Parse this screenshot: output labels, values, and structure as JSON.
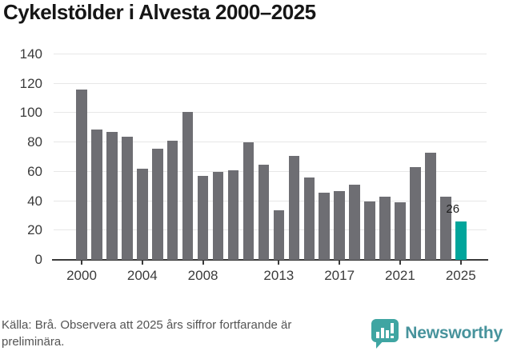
{
  "title": "Cykelstölder i Alvesta 2000–2025",
  "chart_data": {
    "type": "bar",
    "title": "Cykelstölder i Alvesta 2000–2025",
    "categories": [
      2000,
      2001,
      2002,
      2003,
      2004,
      2005,
      2006,
      2007,
      2008,
      2009,
      2010,
      2011,
      2012,
      2013,
      2014,
      2015,
      2016,
      2017,
      2018,
      2019,
      2020,
      2021,
      2022,
      2023,
      2024,
      2025
    ],
    "values": [
      116,
      89,
      87,
      84,
      62,
      76,
      81,
      101,
      57,
      60,
      61,
      80,
      65,
      34,
      71,
      56,
      46,
      47,
      51,
      40,
      43,
      39,
      63,
      73,
      43,
      26
    ],
    "highlight_index": 25,
    "highlight_label": "26",
    "xlabel": "",
    "ylabel": "",
    "ylim": [
      0,
      140
    ],
    "yticks": [
      0,
      20,
      40,
      60,
      80,
      100,
      120,
      140
    ],
    "xticks": [
      2000,
      2004,
      2008,
      2013,
      2017,
      2021,
      2025
    ],
    "grid": true,
    "legend": false,
    "bar_color": "#6e6e73",
    "highlight_color": "#00a59b"
  },
  "footer": {
    "source": "Källa: Brå. Observera att 2025 års siffror fortfarande är preliminära.",
    "brand": "Newsworthy"
  },
  "colors": {
    "background": "#ffffff",
    "bar": "#6e6e73",
    "highlight": "#00a59b",
    "grid": "#e7e7e7",
    "axis": "#3a3a3a",
    "title_text": "#161616",
    "tick_text": "#3b3b3b",
    "source_text": "#545454",
    "brand_text": "#47939c",
    "logo_bubble": "#3fa5a2"
  },
  "icons": {
    "logo": "newsworthy-speech-bubble-bar-chart-icon"
  }
}
